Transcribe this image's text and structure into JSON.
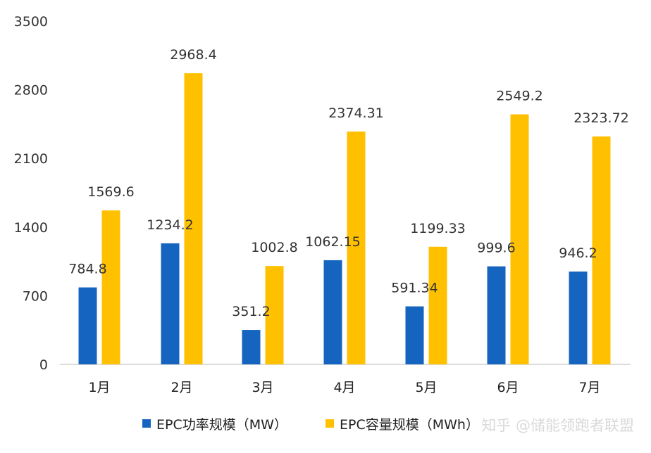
{
  "chart_data": {
    "type": "bar",
    "categories": [
      "1月",
      "2月",
      "3月",
      "4月",
      "5月",
      "6月",
      "7月"
    ],
    "series": [
      {
        "name": "EPC功率规模（MW）",
        "color": "#1565C0",
        "values": [
          784.8,
          1234.2,
          351.2,
          1062.15,
          591.34,
          999.6,
          946.2
        ],
        "labels": [
          "784.8",
          "1234.2",
          "351.2",
          "1062.15",
          "591.34",
          "999.6",
          "946.2"
        ]
      },
      {
        "name": "EPC容量规模（MWh）",
        "color": "#FFC000",
        "values": [
          1569.6,
          2968.4,
          1002.8,
          2374.31,
          1199.33,
          2549.2,
          2323.72
        ],
        "labels": [
          "1569.6",
          "2968.4",
          "1002.8",
          "2374.31",
          "1199.33",
          "2549.2",
          "2323.72"
        ]
      }
    ],
    "yticks": [
      "0",
      "700",
      "1400",
      "2100",
      "2800",
      "3500"
    ],
    "ylim": [
      0,
      3500
    ],
    "grid": false,
    "legend_position": "bottom"
  },
  "watermark": "知乎 @储能领跑者联盟"
}
